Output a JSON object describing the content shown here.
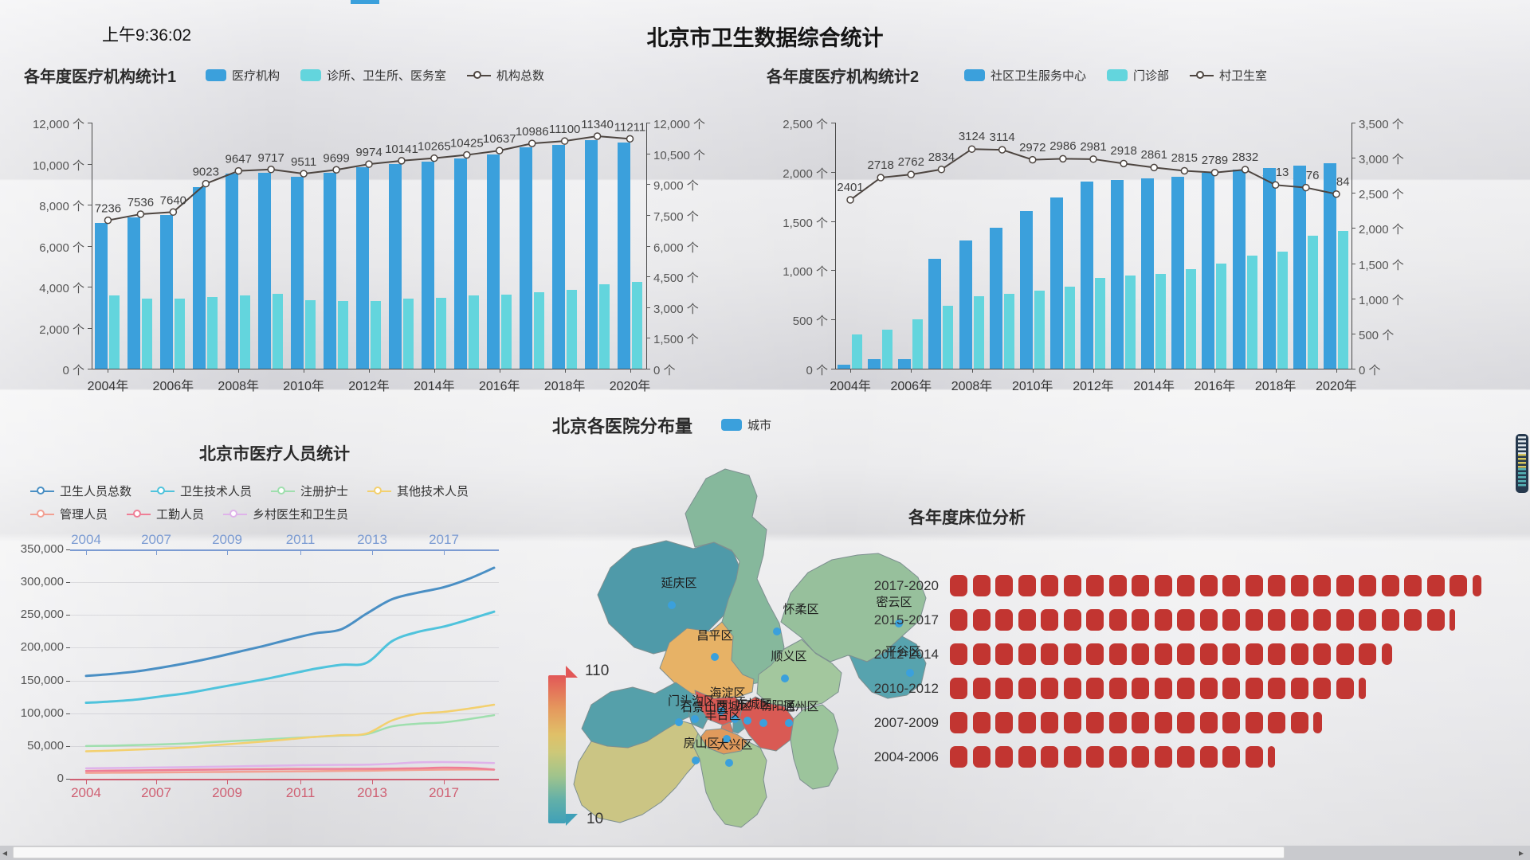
{
  "page": {
    "clock": "上午9:36:02",
    "title": "北京市卫生数据综合统计"
  },
  "colors": {
    "bar_blue": "#3ba0dc",
    "bar_cyan": "#63d5dd",
    "org_line": "#4d4540",
    "bed_red": "#c23531",
    "dot_blue": "#3ba0dc",
    "staff_axis_top": "#7b9bd2",
    "staff_axis_bottom": "#cf5f72"
  },
  "chart_data": [
    {
      "id": "orgs1",
      "type": "bar",
      "title": "各年度医疗机构统计1",
      "legend": [
        {
          "label": "医疗机构",
          "icon": "bar",
          "color": "#3ba0dc"
        },
        {
          "label": "诊所、卫生所、医务室",
          "icon": "bar",
          "color": "#63d5dd"
        },
        {
          "label": "机构总数",
          "icon": "line",
          "color": "#4d4540"
        }
      ],
      "categories": [
        "2004年",
        "2005年",
        "2006年",
        "2007年",
        "2008年",
        "2009年",
        "2010年",
        "2011年",
        "2012年",
        "2013年",
        "2014年",
        "2015年",
        "2016年",
        "2017年",
        "2018年",
        "2019年",
        "2020年"
      ],
      "x_tick_labels": [
        "2004年",
        "2006年",
        "2008年",
        "2010年",
        "2012年",
        "2014年",
        "2016年",
        "2018年",
        "2020年"
      ],
      "series": [
        {
          "name": "医疗机构",
          "type": "bar",
          "axis": "left",
          "color": "#3ba0dc",
          "values": [
            7100,
            7395,
            7490,
            8870,
            9500,
            9560,
            9350,
            9545,
            9820,
            9985,
            10095,
            10240,
            10455,
            10790,
            10905,
            11150,
            11010
          ]
        },
        {
          "name": "诊所、卫生所、医务室",
          "type": "bar",
          "axis": "left",
          "color": "#63d5dd",
          "values": [
            3590,
            3420,
            3410,
            3500,
            3580,
            3650,
            3350,
            3310,
            3310,
            3400,
            3460,
            3560,
            3610,
            3720,
            3860,
            4100,
            4250
          ]
        },
        {
          "name": "机构总数",
          "type": "line",
          "axis": "right",
          "color": "#4d4540",
          "show_labels": true,
          "values": [
            7236,
            7536,
            7640,
            9023,
            9647,
            9717,
            9511,
            9699,
            9974,
            10141,
            10265,
            10425,
            10637,
            10986,
            11100,
            11340,
            11211
          ]
        }
      ],
      "left_axis": {
        "min": 0,
        "max": 12000,
        "tick_labels": [
          "0 个",
          "2,000 个",
          "4,000 个",
          "6,000 个",
          "8,000 个",
          "10,000 个",
          "12,000 个"
        ]
      },
      "right_axis": {
        "min": 0,
        "max": 12000,
        "tick_labels": [
          "0 个",
          "1,500 个",
          "3,000 个",
          "4,500 个",
          "6,000 个",
          "7,500 个",
          "9,000 个",
          "10,500 个",
          "12,000 个"
        ]
      }
    },
    {
      "id": "orgs2",
      "type": "bar",
      "title": "各年度医疗机构统计2",
      "legend": [
        {
          "label": "社区卫生服务中心",
          "icon": "bar",
          "color": "#3ba0dc"
        },
        {
          "label": "门诊部",
          "icon": "bar",
          "color": "#63d5dd"
        },
        {
          "label": "村卫生室",
          "icon": "line",
          "color": "#4d4540"
        }
      ],
      "categories": [
        "2004年",
        "2005年",
        "2006年",
        "2007年",
        "2008年",
        "2009年",
        "2010年",
        "2011年",
        "2012年",
        "2013年",
        "2014年",
        "2015年",
        "2016年",
        "2017年",
        "2018年",
        "2019年",
        "2020年"
      ],
      "x_tick_labels": [
        "2004年",
        "2006年",
        "2008年",
        "2010年",
        "2012年",
        "2014年",
        "2016年",
        "2018年",
        "2020年"
      ],
      "series": [
        {
          "name": "社区卫生服务中心",
          "type": "bar",
          "axis": "left",
          "color": "#3ba0dc",
          "values": [
            40,
            95,
            100,
            1115,
            1300,
            1430,
            1600,
            1740,
            1900,
            1915,
            1930,
            1950,
            1990,
            2020,
            2040,
            2060,
            2090
          ]
        },
        {
          "name": "门诊部",
          "type": "bar",
          "axis": "left",
          "color": "#63d5dd",
          "values": [
            350,
            400,
            500,
            640,
            740,
            760,
            790,
            830,
            920,
            950,
            960,
            1010,
            1070,
            1150,
            1190,
            1350,
            1400
          ]
        },
        {
          "name": "村卫生室",
          "type": "line",
          "axis": "right",
          "color": "#4d4540",
          "show_labels": true,
          "values": [
            2401,
            2718,
            2762,
            2834,
            3124,
            3114,
            2972,
            2986,
            2981,
            2918,
            2861,
            2815,
            2789,
            2832,
            2613,
            2576,
            2484
          ]
        }
      ],
      "left_axis": {
        "min": 0,
        "max": 2500,
        "tick_labels": [
          "0 个",
          "500 个",
          "1,000 个",
          "1,500 个",
          "2,000 个",
          "2,500 个"
        ]
      },
      "right_axis": {
        "min": 0,
        "max": 3500,
        "tick_labels": [
          "0 个",
          "500 个",
          "1,000 个",
          "1,500 个",
          "2,000 个",
          "2,500 个",
          "3,000 个",
          "3,500 个"
        ]
      }
    },
    {
      "id": "staff",
      "type": "line",
      "title": "北京市医疗人员统计",
      "legend": [
        {
          "label": "卫生人员总数",
          "icon": "line",
          "color": "#4a8fc4"
        },
        {
          "label": "卫生技术人员",
          "icon": "line",
          "color": "#4fc3dc"
        },
        {
          "label": "注册护士",
          "icon": "line",
          "color": "#9fdfae"
        },
        {
          "label": "其他技术人员",
          "icon": "line",
          "color": "#f3d06e"
        },
        {
          "label": "管理人员",
          "icon": "line",
          "color": "#f2a093"
        },
        {
          "label": "工勤人员",
          "icon": "line",
          "color": "#ef7e96"
        },
        {
          "label": "乡村医生和卫生员",
          "icon": "line",
          "color": "#dfb3ea"
        }
      ],
      "x_tick_labels": [
        "2004",
        "2007",
        "2009",
        "2011",
        "2013",
        "2017"
      ],
      "y_axis": {
        "min": 0,
        "max": 350000,
        "tick_labels": [
          "0",
          "50,000",
          "100,000",
          "150,000",
          "200,000",
          "250,000",
          "300,000",
          "350,000"
        ]
      },
      "series": [
        {
          "name": "卫生人员总数",
          "color": "#4a8fc4",
          "width": 3,
          "values": [
            157000,
            160000,
            164000,
            170000,
            177000,
            185000,
            194000,
            203000,
            213000,
            222000,
            228000,
            252000,
            274000,
            284000,
            292000,
            305000,
            322000
          ]
        },
        {
          "name": "卫生技术人员",
          "color": "#4fc3dc",
          "width": 3,
          "values": [
            116000,
            118000,
            121000,
            126000,
            131000,
            138000,
            145000,
            152000,
            160000,
            168000,
            174000,
            177000,
            210000,
            224000,
            232000,
            243000,
            255000
          ]
        },
        {
          "name": "注册护士",
          "color": "#9fdfae",
          "width": 2.5,
          "values": [
            50000,
            50500,
            51500,
            52500,
            54000,
            56000,
            58000,
            60000,
            62000,
            64000,
            66000,
            68000,
            80000,
            84000,
            86000,
            91000,
            97000
          ]
        },
        {
          "name": "其他技术人员",
          "color": "#f3d06e",
          "width": 2.5,
          "values": [
            42000,
            43000,
            44500,
            46000,
            48000,
            51000,
            54000,
            57000,
            60500,
            64000,
            66500,
            69000,
            89000,
            99000,
            102000,
            107000,
            113000
          ]
        },
        {
          "name": "管理人员",
          "color": "#f2a093",
          "width": 2.5,
          "values": [
            9000,
            9200,
            9400,
            9700,
            10000,
            10300,
            10600,
            11000,
            11300,
            11600,
            12000,
            12300,
            13000,
            13500,
            14000,
            14200,
            14000
          ]
        },
        {
          "name": "工勤人员",
          "color": "#ef7e96",
          "width": 2.5,
          "values": [
            12000,
            12400,
            12800,
            13200,
            13600,
            14000,
            14400,
            14700,
            15000,
            15000,
            15100,
            15200,
            15500,
            16000,
            17000,
            16500,
            14000
          ]
        },
        {
          "name": "乡村医生和卫生员",
          "color": "#dfb3ea",
          "width": 2.5,
          "values": [
            16000,
            16400,
            16800,
            17300,
            17800,
            18400,
            19000,
            19800,
            20400,
            21000,
            21200,
            21600,
            23000,
            25000,
            25500,
            25000,
            24000
          ]
        }
      ]
    },
    {
      "id": "map",
      "type": "map",
      "title": "北京各医院分布量",
      "legend": [
        {
          "label": "城市",
          "icon": "bar",
          "color": "#3ba0dc"
        }
      ],
      "visual_map": {
        "max_label": "110",
        "min_label": "10",
        "colors": [
          "#e25757",
          "#e5975d",
          "#e0c068",
          "#cdc878",
          "#a0c48c",
          "#63b0a8",
          "#3fa0b8"
        ]
      },
      "districts": [
        {
          "id": "yanqing",
          "name": "延庆区",
          "color": "#4f9aa9",
          "label": [
            152,
            152
          ],
          "dot": [
            143,
            175
          ]
        },
        {
          "id": "huairou",
          "name": "怀柔区",
          "color": "#86b89c",
          "label": [
            305,
            185
          ],
          "dot": [
            275,
            208
          ]
        },
        {
          "id": "miyun",
          "name": "密云区",
          "color": "#97c09c",
          "label": [
            422,
            176
          ],
          "dot": [
            428,
            198
          ]
        },
        {
          "id": "changping",
          "name": "昌平区",
          "color": "#e7b266",
          "label": [
            197,
            218
          ],
          "dot": [
            197,
            240
          ]
        },
        {
          "id": "shunyi",
          "name": "顺义区",
          "color": "#a3c79e",
          "label": [
            290,
            244
          ],
          "dot": [
            285,
            267
          ]
        },
        {
          "id": "pinggu",
          "name": "平谷区",
          "color": "#57a3ae",
          "label": [
            433,
            238
          ],
          "dot": [
            442,
            260
          ]
        },
        {
          "id": "mentougou",
          "name": "门头沟区",
          "color": "#55a0aa",
          "label": [
            168,
            300
          ],
          "dot": [
            152,
            322
          ]
        },
        {
          "id": "haidian",
          "name": "海淀区",
          "color": "#d95a54",
          "label": [
            213,
            290
          ],
          "dot": [
            205,
            308
          ]
        },
        {
          "id": "shijingshan",
          "name": "石景山区",
          "color": "#5aa0aa",
          "label": [
            184,
            308
          ],
          "dot": [
            172,
            318
          ]
        },
        {
          "id": "xicheng",
          "name": "西城区",
          "color": "#d97a60",
          "label": [
            221,
            306
          ],
          "dot": [
            222,
            318
          ]
        },
        {
          "id": "dongcheng",
          "name": "东城区",
          "color": "#5aa0aa",
          "label": [
            246,
            304
          ],
          "dot": [
            238,
            320
          ]
        },
        {
          "id": "chaoyang",
          "name": "朝阳区",
          "color": "#d95a54",
          "label": [
            276,
            306
          ],
          "dot": [
            258,
            323
          ]
        },
        {
          "id": "tongzhou",
          "name": "通州区",
          "color": "#9cc49c",
          "label": [
            305,
            307
          ],
          "dot": [
            290,
            323
          ]
        },
        {
          "id": "fengtai",
          "name": "丰台区",
          "color": "#e09a5c",
          "label": [
            207,
            318
          ],
          "dot": [
            212,
            343
          ]
        },
        {
          "id": "fangshan",
          "name": "房山区",
          "color": "#cbc584",
          "label": [
            180,
            353
          ],
          "dot": [
            173,
            370
          ]
        },
        {
          "id": "daxing",
          "name": "大兴区",
          "color": "#a6c694",
          "label": [
            222,
            355
          ],
          "dot": [
            215,
            373
          ]
        }
      ]
    },
    {
      "id": "beds",
      "type": "pictorial",
      "title": "各年度床位分析",
      "categories": [
        "2017-2020",
        "2015-2017",
        "2012-2014",
        "2010-2012",
        "2007-2009",
        "2004-2006"
      ],
      "values": [
        23.5,
        22.3,
        19.6,
        18.4,
        16.5,
        14.4
      ],
      "color": "#c23531"
    }
  ],
  "ui": {
    "scroll_left_arrow": "◂",
    "scroll_right_arrow": "▸"
  }
}
